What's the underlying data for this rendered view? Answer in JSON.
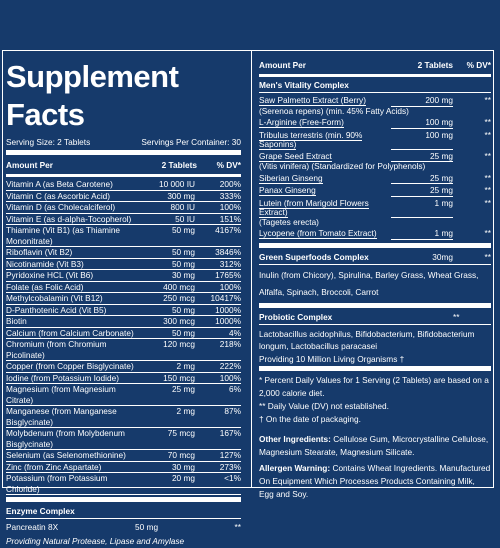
{
  "facts": {
    "title": "Supplement Facts",
    "serving_size": "Serving Size: 2 Tablets",
    "servings_per_container": "Servings Per Container: 30",
    "header": {
      "name": "Amount Per",
      "amount": "2 Tablets",
      "dv": "% DV*"
    },
    "rows": [
      {
        "name": "Vitamin A (as Beta Carotene)",
        "amount": "10 000 IU",
        "dv": "200%"
      },
      {
        "name": "Vitamin C (as Ascorbic Acid)",
        "amount": "300 mg",
        "dv": "333%"
      },
      {
        "name": "Vitamin D (as Cholecalciferol)",
        "amount": "800 IU",
        "dv": "100%"
      },
      {
        "name": "Vitamin E (as d-alpha-Tocopherol)",
        "amount": "50 IU",
        "dv": "151%"
      },
      {
        "name": "Thiamine (Vit B1) (as Thiamine Mononitrate)",
        "amount": "50 mg",
        "dv": "4167%"
      },
      {
        "name": "Riboflavin (Vit B2)",
        "amount": "50 mg",
        "dv": "3846%"
      },
      {
        "name": "Nicotinamide (Vit B3)",
        "amount": "50 mg",
        "dv": "312%"
      },
      {
        "name": "Pyridoxine HCL (Vit B6)",
        "amount": "30 mg",
        "dv": "1765%"
      },
      {
        "name": "Folate (as Folic Acid)",
        "amount": "400 mcg",
        "dv": "100%"
      },
      {
        "name": "Methylcobalamin (Vit B12)",
        "amount": "250 mcg",
        "dv": "10417%"
      },
      {
        "name": "D-Panthotenic Acid (Vit B5)",
        "amount": "50 mg",
        "dv": "1000%"
      },
      {
        "name": "Biotin",
        "amount": "300 mcg",
        "dv": "1000%"
      },
      {
        "name": "Calcium (from Calcium Carbonate)",
        "amount": "50 mg",
        "dv": "4%"
      },
      {
        "name": "Chromium (from Chromium Picolinate)",
        "amount": "120 mcg",
        "dv": "218%"
      },
      {
        "name": "Copper (from Copper Bisglycinate)",
        "amount": "2 mg",
        "dv": "222%"
      },
      {
        "name": "Iodine (from Potassium Iodide)",
        "amount": "150 mcg",
        "dv": "100%"
      },
      {
        "name": "Magnesium (from Magnesium Citrate)",
        "amount": "25 mg",
        "dv": "6%"
      },
      {
        "name": "Manganese (from Manganese Bisglycinate)",
        "amount": "2 mg",
        "dv": "87%"
      },
      {
        "name": "Molybdenum (from Molybdenum Bisglycinate)",
        "amount": "75 mcg",
        "dv": "167%"
      },
      {
        "name": "Selenium (as Selenomethionine)",
        "amount": "70 mcg",
        "dv": "127%"
      },
      {
        "name": "Zinc (from Zinc Aspartate)",
        "amount": "30 mg",
        "dv": "273%"
      },
      {
        "name": "Potassium (from Potassium Chloride)",
        "amount": "20 mg",
        "dv": "<1%"
      }
    ],
    "enzyme": {
      "title": "Enzyme Complex",
      "name": "Pancreatin 8X",
      "amount": "50 mg",
      "dv": "**",
      "note": "Providing Natural Protease, Lipase and Amylase"
    }
  },
  "right": {
    "header": {
      "name": "Amount Per",
      "amount": "2 Tablets",
      "dv": "% DV*"
    },
    "vitality_title": "Men's Vitality Complex",
    "vitality_rows": [
      {
        "name": "Saw Palmetto Extract (Berry)",
        "sub": "(Serenoa repens) (min. 45% Fatty Acids)",
        "amount": "200 mg",
        "dv": "**"
      },
      {
        "name": "L-Arginine (Free-Form)",
        "sub": "",
        "amount": "100 mg",
        "dv": "**"
      },
      {
        "name": "Tribulus terrestris (min. 90% Saponins)",
        "sub": "",
        "amount": "100 mg",
        "dv": "**"
      },
      {
        "name": "Grape Seed Extract",
        "sub": "(Vitis vinifera) (Standardized for Polyphenols)",
        "amount": "25 mg",
        "dv": "**"
      },
      {
        "name": "Siberian Ginseng",
        "sub": "",
        "amount": "25 mg",
        "dv": "**"
      },
      {
        "name": "Panax Ginseng",
        "sub": "",
        "amount": "25 mg",
        "dv": "**"
      },
      {
        "name": "Lutein (from Marigold Flowers Extract)",
        "sub": "(Tagetes erecta)",
        "amount": "1 mg",
        "dv": "**"
      },
      {
        "name": "Lycopene (from Tomato Extract)",
        "sub": "",
        "amount": "1 mg",
        "dv": "**"
      }
    ],
    "green": {
      "title": "Green Superfoods Complex",
      "amount": "30mg",
      "dv": "**",
      "text": "Inulin (from Chicory), Spirulina, Barley Grass, Wheat Grass, Alfalfa, Spinach, Broccoli, Carrot"
    },
    "probiotic": {
      "title": "Probiotic Complex",
      "dv": "**",
      "text": "Lactobacillus acidophilus, Bifidobacterium, Bifidobacterium longum, Lactobacillus paracasei",
      "providing": "Providing 10 Million Living Organisms †"
    },
    "footnotes": [
      "* Percent Daily Values for 1 Serving (2 Tablets) are based on a 2,000 calorie diet.",
      "** Daily Value (DV) not established.",
      "† On the date of packaging."
    ],
    "other": {
      "label": "Other Ingredients:",
      "text": "Cellulose Gum, Microcrystalline Cellulose, Magnesium Stearate, Magnesium Silicate."
    },
    "warning": {
      "label": "Allergen Warning:",
      "text": "Contains Wheat Ingredients. Manufactured On Equipment Which Processes Products Containing Milk, Egg and Soy."
    }
  }
}
